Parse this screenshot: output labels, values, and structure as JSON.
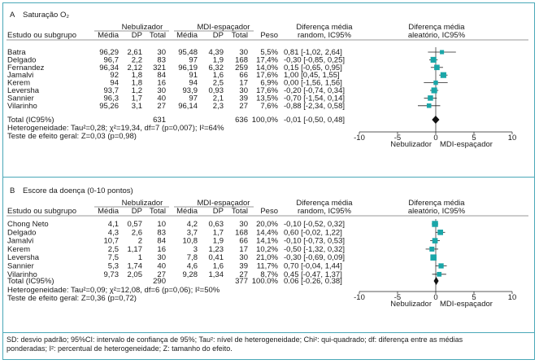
{
  "footnote": [
    "SD: desvio padrão; 95%CI: intervalo de confiança de 95%; Tau²: nível de heterogeneidade; Chi²: qui-quadrado; df: diferença entre as médias",
    "ponderadas; I²: percentual de heterogeneidade; Z: tamanho do efeito."
  ],
  "colors": {
    "marker": "#1aa6a8",
    "frame": "#4aa8b8",
    "diamond": "#111111"
  },
  "chart_data": [
    {
      "type": "forest",
      "panel_letter": "A",
      "title": "Saturação O₂",
      "group1": "Nebulizador",
      "group2": "MDI-espaçador",
      "col_headers": [
        "Estudo ou subgrupo",
        "Média",
        "DP",
        "Total",
        "Média",
        "DP",
        "Total",
        "Peso"
      ],
      "effect_header": [
        "Diferença média",
        "random, IC95%"
      ],
      "plot_header": [
        "Diferença média",
        "aleatório, IC95%"
      ],
      "studies": [
        {
          "name": "Batra",
          "m1": "96,29",
          "sd1": "2,61",
          "n1": "30",
          "m2": "95,48",
          "sd2": "4,39",
          "n2": "30",
          "weight": "5,5%",
          "ci": "0,81 [-1,02, 2,64]",
          "est": 0.81,
          "lo": -1.02,
          "hi": 2.64,
          "w": 5.5
        },
        {
          "name": "Delgado",
          "m1": "96,7",
          "sd1": "2,2",
          "n1": "83",
          "m2": "97",
          "sd2": "1,9",
          "n2": "168",
          "weight": "17,4%",
          "ci": "-0,30 [-0,85, 0,25]",
          "est": -0.3,
          "lo": -0.85,
          "hi": 0.25,
          "w": 17.4
        },
        {
          "name": "Fernandez",
          "m1": "96,34",
          "sd1": "2,12",
          "n1": "321",
          "m2": "96,19",
          "sd2": "6,32",
          "n2": "259",
          "weight": "14,0%",
          "ci": "0,15 [-0,65, 0,95]",
          "est": 0.15,
          "lo": -0.65,
          "hi": 0.95,
          "w": 14.0
        },
        {
          "name": "Jamalvi",
          "m1": "92",
          "sd1": "1,8",
          "n1": "84",
          "m2": "91",
          "sd2": "1,6",
          "n2": "66",
          "weight": "17,6%",
          "ci": "1,00 [0,45, 1,55]",
          "est": 1.0,
          "lo": 0.45,
          "hi": 1.55,
          "w": 17.6
        },
        {
          "name": "Kerem",
          "m1": "94",
          "sd1": "1,8",
          "n1": "16",
          "m2": "94",
          "sd2": "2,5",
          "n2": "17",
          "weight": "6,9%",
          "ci": "0,00 [-1,56, 1,56]",
          "est": 0.0,
          "lo": -1.56,
          "hi": 1.56,
          "w": 6.9
        },
        {
          "name": "Leversha",
          "m1": "93,7",
          "sd1": "1,2",
          "n1": "30",
          "m2": "93,9",
          "sd2": "0,93",
          "n2": "30",
          "weight": "17,6%",
          "ci": "-0,20 [-0,74, 0,34]",
          "est": -0.2,
          "lo": -0.74,
          "hi": 0.34,
          "w": 17.6
        },
        {
          "name": "Sannier",
          "m1": "96,3",
          "sd1": "1,7",
          "n1": "40",
          "m2": "97",
          "sd2": "2,1",
          "n2": "39",
          "weight": "13,5%",
          "ci": "-0,70 [-1,54, 0,14]",
          "est": -0.7,
          "lo": -1.54,
          "hi": 0.14,
          "w": 13.5
        },
        {
          "name": "Vilarinho",
          "m1": "95,26",
          "sd1": "3,1",
          "n1": "27",
          "m2": "96,14",
          "sd2": "2,3",
          "n2": "27",
          "weight": "7,6%",
          "ci": "-0,88 [-2,34, 0,58]",
          "est": -0.88,
          "lo": -2.34,
          "hi": 0.58,
          "w": 7.6
        }
      ],
      "total": {
        "label": "Total (IC95%)",
        "n1": "631",
        "n2": "636",
        "weight": "100,0%",
        "ci": "-0,01 [-0,50, 0,48]",
        "est": -0.01,
        "lo": -0.5,
        "hi": 0.48
      },
      "heterogeneity": "Heterogeneidade: Tau²=0,28; χ²=19,34, df=7 (p=0,007); I²=64%",
      "overall_effect": "Teste de efeito geral: Z=0,03 (p=0,98)",
      "xlim": [
        -10,
        10
      ],
      "ticks": [
        -10,
        -5,
        0,
        5,
        10
      ],
      "tick_labels": [
        "-10",
        "-5",
        "0",
        "5",
        "10"
      ],
      "favours_left": "Nebulizador",
      "favours_right": "MDI-espaçador"
    },
    {
      "type": "forest",
      "panel_letter": "B",
      "title": "Escore da doença (0-10 pontos)",
      "group1": "Nebulizador",
      "group2": "MDI-espaçador",
      "col_headers": [
        "Estudo ou subgrupo",
        "Média",
        "DP",
        "Total",
        "Média",
        "DP",
        "Total",
        "Peso"
      ],
      "effect_header": [
        "Diferença média",
        "random, IC95%"
      ],
      "plot_header": [
        "Diferença média",
        "aleatório, IC95%"
      ],
      "studies": [
        {
          "name": "Chong Neto",
          "m1": "4,1",
          "sd1": "0,57",
          "n1": "10",
          "m2": "4,2",
          "sd2": "0,63",
          "n2": "30",
          "weight": "20,0%",
          "ci": "-0,10 [-0,52, 0,32]",
          "est": -0.1,
          "lo": -0.52,
          "hi": 0.32,
          "w": 20.0
        },
        {
          "name": "Delgado",
          "m1": "4,3",
          "sd1": "2,6",
          "n1": "83",
          "m2": "3,7",
          "sd2": "1,7",
          "n2": "168",
          "weight": "14,4%",
          "ci": "0,60 [-0,02, 1,22]",
          "est": 0.6,
          "lo": -0.02,
          "hi": 1.22,
          "w": 14.4
        },
        {
          "name": "Jamalvi",
          "m1": "10,7",
          "sd1": "2",
          "n1": "84",
          "m2": "10,8",
          "sd2": "1,9",
          "n2": "66",
          "weight": "14,1%",
          "ci": "-0,10 [-0,73, 0,53]",
          "est": -0.1,
          "lo": -0.73,
          "hi": 0.53,
          "w": 14.1
        },
        {
          "name": "Kerem",
          "m1": "2,5",
          "sd1": "1,17",
          "n1": "16",
          "m2": "3",
          "sd2": "1,23",
          "n2": "17",
          "weight": "10,2%",
          "ci": "-0,50 [-1,32, 0,32]",
          "est": -0.5,
          "lo": -1.32,
          "hi": 0.32,
          "w": 10.2
        },
        {
          "name": "Leversha",
          "m1": "7,5",
          "sd1": "1",
          "n1": "30",
          "m2": "7,8",
          "sd2": "0,41",
          "n2": "30",
          "weight": "21,0%",
          "ci": "-0,30 [-0,69, 0,09]",
          "est": -0.3,
          "lo": -0.69,
          "hi": 0.09,
          "w": 21.0
        },
        {
          "name": "Sannier",
          "m1": "5,3",
          "sd1": "1,74",
          "n1": "40",
          "m2": "4,6",
          "sd2": "1,6",
          "n2": "39",
          "weight": "11,7%",
          "ci": "0,70 [-0,04, 1,44]",
          "est": 0.7,
          "lo": -0.04,
          "hi": 1.44,
          "w": 11.7
        },
        {
          "name": "Vilarinho",
          "m1": "9,73",
          "sd1": "2,05",
          "n1": "27",
          "m2": "9,28",
          "sd2": "1,34",
          "n2": "27",
          "weight": "8,7%",
          "ci": "0,45 [-0,47, 1,37]",
          "est": 0.45,
          "lo": -0.47,
          "hi": 1.37,
          "w": 8.7
        }
      ],
      "total": {
        "label": "Total (IC95%)",
        "n1": "290",
        "n2": "377",
        "weight": "100.0%",
        "ci": "0.06 [-0.26, 0.38]",
        "est": 0.06,
        "lo": -0.26,
        "hi": 0.38
      },
      "heterogeneity": "Heterogeneidade: Tau²=0,09; χ²=12,08, df=6 (p=0,06); I²=50%",
      "overall_effect": "Teste de efeito geral: Z=0,36 (p=0,72)",
      "xlim": [
        -10,
        10
      ],
      "ticks": [
        -10,
        -5,
        0,
        5,
        10
      ],
      "tick_labels": [
        "-10",
        "-5",
        "0",
        "5",
        "10"
      ],
      "favours_left": "Nebulizador",
      "favours_right": "MDI-espaçador"
    }
  ]
}
